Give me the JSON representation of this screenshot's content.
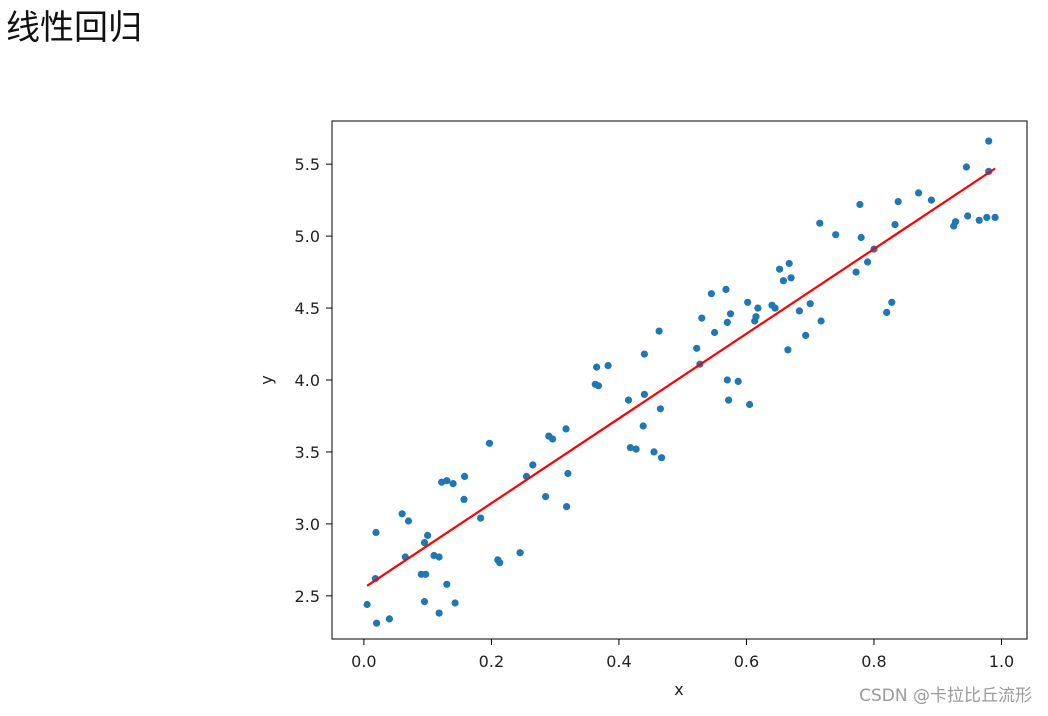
{
  "page": {
    "title": "线性回归",
    "watermark": "CSDN @卡拉比丘流形"
  },
  "chart_data": {
    "type": "scatter",
    "xlabel": "x",
    "ylabel": "y",
    "xlim": [
      -0.05,
      1.04
    ],
    "ylim": [
      2.2,
      5.8
    ],
    "x_ticks": [
      "0.0",
      "0.2",
      "0.4",
      "0.6",
      "0.8",
      "1.0"
    ],
    "x_tick_values": [
      0.0,
      0.2,
      0.4,
      0.6,
      0.8,
      1.0
    ],
    "y_ticks": [
      "2.5",
      "3.0",
      "3.5",
      "4.0",
      "4.5",
      "5.0",
      "5.5"
    ],
    "y_tick_values": [
      2.5,
      3.0,
      3.5,
      4.0,
      4.5,
      5.0,
      5.5
    ],
    "grid": false,
    "series": [
      {
        "type": "scatter",
        "color": "#1f77b4",
        "points": [
          [
            0.005,
            2.44
          ],
          [
            0.02,
            2.31
          ],
          [
            0.04,
            2.34
          ],
          [
            0.018,
            2.62
          ],
          [
            0.019,
            2.94
          ],
          [
            0.06,
            3.07
          ],
          [
            0.07,
            3.02
          ],
          [
            0.065,
            2.77
          ],
          [
            0.09,
            2.65
          ],
          [
            0.097,
            2.65
          ],
          [
            0.095,
            2.87
          ],
          [
            0.1,
            2.92
          ],
          [
            0.11,
            2.78
          ],
          [
            0.118,
            2.77
          ],
          [
            0.095,
            2.46
          ],
          [
            0.118,
            2.38
          ],
          [
            0.13,
            2.58
          ],
          [
            0.143,
            2.45
          ],
          [
            0.122,
            3.29
          ],
          [
            0.13,
            3.3
          ],
          [
            0.14,
            3.28
          ],
          [
            0.158,
            3.33
          ],
          [
            0.157,
            3.17
          ],
          [
            0.183,
            3.04
          ],
          [
            0.197,
            3.56
          ],
          [
            0.21,
            2.75
          ],
          [
            0.213,
            2.73
          ],
          [
            0.245,
            2.8
          ],
          [
            0.255,
            3.33
          ],
          [
            0.265,
            3.41
          ],
          [
            0.285,
            3.19
          ],
          [
            0.29,
            3.61
          ],
          [
            0.296,
            3.59
          ],
          [
            0.317,
            3.66
          ],
          [
            0.32,
            3.35
          ],
          [
            0.318,
            3.12
          ],
          [
            0.363,
            3.97
          ],
          [
            0.368,
            3.96
          ],
          [
            0.365,
            4.09
          ],
          [
            0.383,
            4.1
          ],
          [
            0.415,
            3.86
          ],
          [
            0.418,
            3.53
          ],
          [
            0.427,
            3.52
          ],
          [
            0.438,
            3.68
          ],
          [
            0.44,
            3.9
          ],
          [
            0.44,
            4.18
          ],
          [
            0.455,
            3.5
          ],
          [
            0.463,
            4.34
          ],
          [
            0.465,
            3.8
          ],
          [
            0.467,
            3.46
          ],
          [
            0.522,
            4.22
          ],
          [
            0.527,
            4.11
          ],
          [
            0.53,
            4.43
          ],
          [
            0.545,
            4.6
          ],
          [
            0.55,
            4.33
          ],
          [
            0.568,
            4.63
          ],
          [
            0.57,
            4.4
          ],
          [
            0.575,
            4.46
          ],
          [
            0.57,
            4.0
          ],
          [
            0.572,
            3.86
          ],
          [
            0.587,
            3.99
          ],
          [
            0.602,
            4.54
          ],
          [
            0.605,
            3.83
          ],
          [
            0.613,
            4.41
          ],
          [
            0.615,
            4.44
          ],
          [
            0.618,
            4.5
          ],
          [
            0.64,
            4.52
          ],
          [
            0.645,
            4.5
          ],
          [
            0.652,
            4.77
          ],
          [
            0.658,
            4.69
          ],
          [
            0.667,
            4.81
          ],
          [
            0.67,
            4.71
          ],
          [
            0.665,
            4.21
          ],
          [
            0.683,
            4.48
          ],
          [
            0.693,
            4.31
          ],
          [
            0.7,
            4.53
          ],
          [
            0.715,
            5.09
          ],
          [
            0.717,
            4.41
          ],
          [
            0.74,
            5.01
          ],
          [
            0.772,
            4.75
          ],
          [
            0.778,
            5.22
          ],
          [
            0.78,
            4.99
          ],
          [
            0.79,
            4.82
          ],
          [
            0.8,
            4.91
          ],
          [
            0.82,
            4.47
          ],
          [
            0.828,
            4.54
          ],
          [
            0.833,
            5.08
          ],
          [
            0.838,
            5.24
          ],
          [
            0.87,
            5.3
          ],
          [
            0.89,
            5.25
          ],
          [
            0.925,
            5.07
          ],
          [
            0.928,
            5.1
          ],
          [
            0.945,
            5.48
          ],
          [
            0.947,
            5.14
          ],
          [
            0.965,
            5.11
          ],
          [
            0.977,
            5.13
          ],
          [
            0.98,
            5.45
          ],
          [
            0.98,
            5.66
          ],
          [
            0.99,
            5.13
          ]
        ]
      },
      {
        "type": "line",
        "color": "#ff0000",
        "points": [
          [
            0.005,
            2.57
          ],
          [
            0.99,
            5.47
          ]
        ]
      }
    ]
  }
}
